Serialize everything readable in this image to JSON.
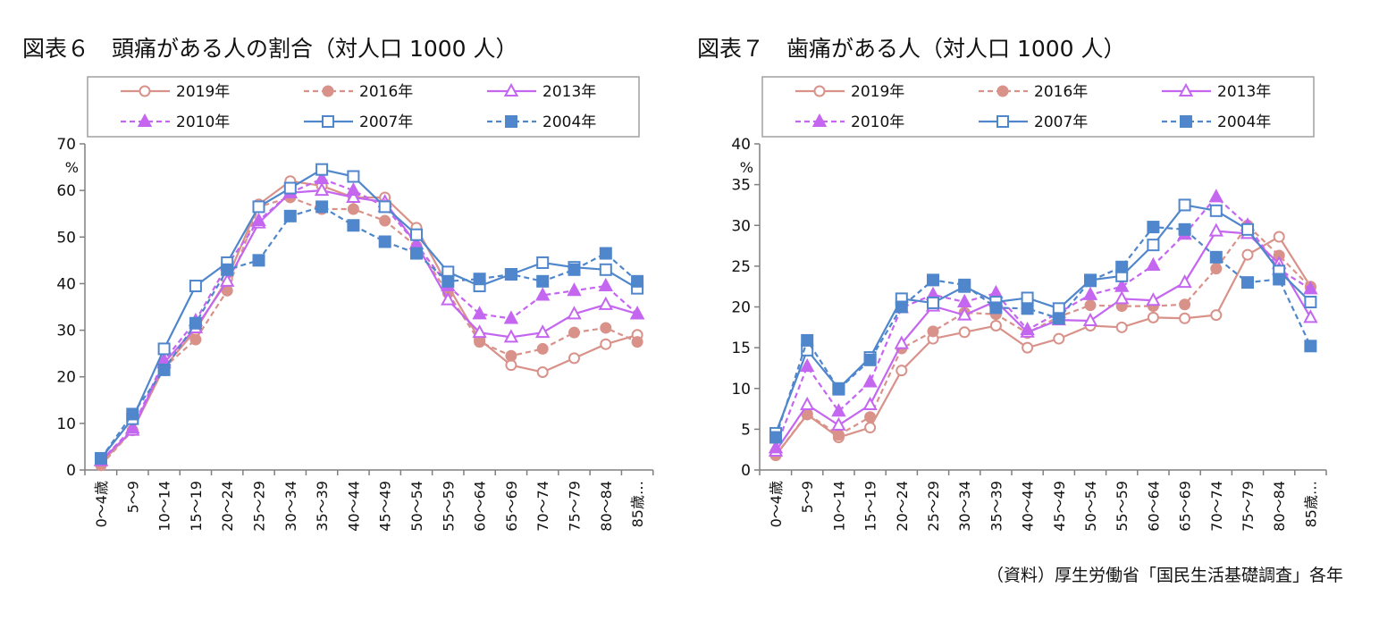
{
  "source_note": "（資料）厚生労働省「国民生活基礎調査」各年",
  "colors": {
    "y2019": "#d8928a",
    "y2016": "#d8928a",
    "y2013": "#c466f0",
    "y2010": "#c466f0",
    "y2007": "#4f86cc",
    "y2004": "#4f86cc"
  },
  "chart_data": [
    {
      "type": "line",
      "title": "図表６　頭痛がある人の割合（対人口 1000 人）",
      "ylabel": "%",
      "ylim": [
        0,
        70
      ],
      "ytick_step": 10,
      "grid": false,
      "legend_placement": "top",
      "categories": [
        "0～4歳",
        "5～9",
        "10～14",
        "15～19",
        "20～24",
        "25～29",
        "30～34",
        "35～39",
        "40～44",
        "45～49",
        "50～54",
        "55～59",
        "60～64",
        "65～69",
        "70～74",
        "75～79",
        "80～84",
        "85歳…"
      ],
      "series": [
        {
          "name": "2019年",
          "marker": "circle-open",
          "dashed": false,
          "color": "#d8928a",
          "values": [
            1.5,
            8.5,
            22,
            30,
            41,
            57,
            62,
            61,
            58.5,
            58.5,
            52,
            39.5,
            28,
            22.5,
            21,
            24,
            27,
            29
          ]
        },
        {
          "name": "2016年",
          "marker": "circle-filled",
          "dashed": true,
          "color": "#d8928a",
          "values": [
            1,
            8.5,
            22,
            28,
            38.5,
            56.5,
            58.5,
            56,
            56,
            53.5,
            48,
            38,
            27.5,
            24.5,
            26,
            29.5,
            30.5,
            27.5
          ]
        },
        {
          "name": "2013年",
          "marker": "triangle-open",
          "dashed": false,
          "color": "#c466f0",
          "values": [
            2,
            8.5,
            23,
            30.5,
            40.5,
            53,
            59.5,
            60,
            58.5,
            57.5,
            48.5,
            36.5,
            29.5,
            28.5,
            29.5,
            33.5,
            35.5,
            33.5
          ]
        },
        {
          "name": "2010年",
          "marker": "triangle-filled",
          "dashed": true,
          "color": "#c466f0",
          "values": [
            2,
            9,
            23.5,
            32,
            44,
            53.5,
            59.5,
            62.5,
            60,
            56.5,
            48.5,
            39.5,
            33.5,
            32.5,
            37.5,
            38.5,
            39.5,
            33.5
          ]
        },
        {
          "name": "2007年",
          "marker": "square-open",
          "dashed": false,
          "color": "#4f86cc",
          "values": [
            2.5,
            11,
            26,
            39.5,
            44.5,
            56.5,
            60.5,
            64.5,
            63,
            56.5,
            50.5,
            42.5,
            39.5,
            42,
            44.5,
            43.5,
            43,
            39
          ]
        },
        {
          "name": "2004年",
          "marker": "square-filled",
          "dashed": true,
          "color": "#4f86cc",
          "values": [
            2.5,
            12,
            21.5,
            31.5,
            43,
            45,
            54.5,
            56.5,
            52.5,
            49,
            46.5,
            40.5,
            41,
            42,
            40.5,
            43,
            46.5,
            40.5
          ]
        }
      ]
    },
    {
      "type": "line",
      "title": "図表７　歯痛がある人（対人口 1000 人）",
      "ylabel": "%",
      "ylim": [
        0,
        40
      ],
      "ytick_step": 5,
      "grid": false,
      "legend_placement": "top",
      "categories": [
        "0～4歳",
        "5～9",
        "10～14",
        "15～19",
        "20～24",
        "25～29",
        "30～34",
        "35～39",
        "40～44",
        "45～49",
        "50～54",
        "55～59",
        "60～64",
        "65～69",
        "70～74",
        "75～79",
        "80～84",
        "85歳…"
      ],
      "series": [
        {
          "name": "2019年",
          "marker": "circle-open",
          "dashed": false,
          "color": "#d8928a",
          "values": [
            1.8,
            6.8,
            4,
            5.2,
            12.2,
            16.1,
            16.9,
            17.7,
            15,
            16.1,
            17.7,
            17.5,
            18.7,
            18.6,
            19,
            26.4,
            28.6,
            22.5
          ]
        },
        {
          "name": "2016年",
          "marker": "circle-filled",
          "dashed": true,
          "color": "#d8928a",
          "values": [
            1.8,
            6.9,
            4.3,
            6.5,
            14.9,
            17,
            19.3,
            19.1,
            16.8,
            18.8,
            20.2,
            20.1,
            20.1,
            20.3,
            24.7,
            30,
            26.3,
            22.4
          ]
        },
        {
          "name": "2013年",
          "marker": "triangle-open",
          "dashed": false,
          "color": "#c466f0",
          "values": [
            2.3,
            8,
            5.5,
            8,
            15.5,
            20.1,
            19,
            20.7,
            16.9,
            18.4,
            18.3,
            21,
            20.8,
            23,
            29.3,
            29,
            25.3,
            18.7
          ]
        },
        {
          "name": "2010年",
          "marker": "triangle-filled",
          "dashed": true,
          "color": "#c466f0",
          "values": [
            2.7,
            12.7,
            7.2,
            10.8,
            19.9,
            21.5,
            20.6,
            21.7,
            17.2,
            19.3,
            21.5,
            22.5,
            25.1,
            28.9,
            33.5,
            30,
            24.6,
            22.2
          ]
        },
        {
          "name": "2007年",
          "marker": "square-open",
          "dashed": false,
          "color": "#4f86cc",
          "values": [
            4.5,
            14.7,
            10,
            13.8,
            21,
            20.5,
            22.5,
            20.6,
            21.1,
            19.8,
            23.3,
            23.8,
            27.6,
            32.5,
            31.8,
            29.5,
            24.4,
            20.6
          ]
        },
        {
          "name": "2004年",
          "marker": "square-filled",
          "dashed": true,
          "color": "#4f86cc",
          "values": [
            4,
            15.9,
            9.9,
            13.5,
            20,
            23.3,
            22.7,
            19.9,
            19.8,
            18.6,
            23.2,
            24.9,
            29.8,
            29.5,
            26.1,
            23,
            23.4,
            15.2
          ]
        }
      ]
    }
  ]
}
